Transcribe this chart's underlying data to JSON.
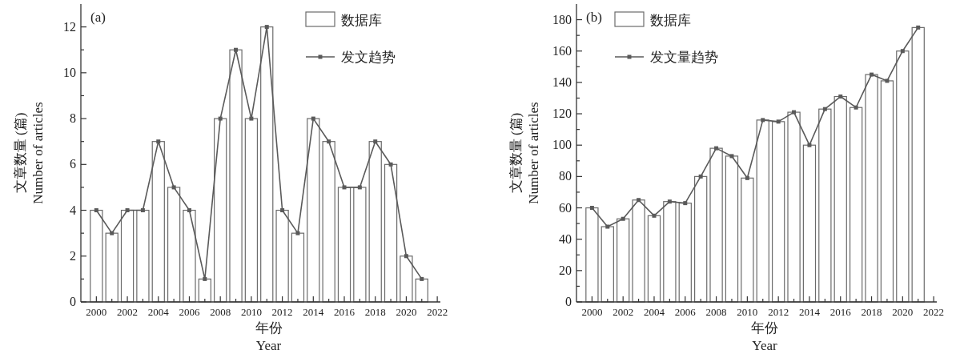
{
  "chart_data": [
    {
      "type": "bar",
      "annotations": [
        "(a)"
      ],
      "xlabel": "年份\nYear",
      "ylabel": "文章数量 (篇)\nNumber of articles",
      "x": [
        2000,
        2001,
        2002,
        2003,
        2004,
        2005,
        2006,
        2007,
        2008,
        2009,
        2010,
        2011,
        2012,
        2013,
        2014,
        2015,
        2016,
        2017,
        2018,
        2019,
        2020,
        2021
      ],
      "series": [
        {
          "name": "数据库",
          "color": "#ffffff",
          "values": [
            4,
            3,
            4,
            4,
            7,
            5,
            4,
            1,
            8,
            11,
            8,
            12,
            4,
            3,
            8,
            7,
            5,
            5,
            7,
            6,
            2,
            1
          ]
        },
        {
          "name": "发文趋势",
          "type": "line",
          "color": "#5a5a5a",
          "values": [
            4,
            3,
            4,
            4,
            7,
            5,
            4,
            1,
            8,
            11,
            8,
            12,
            4,
            3,
            8,
            7,
            5,
            5,
            7,
            6,
            2,
            1
          ]
        }
      ],
      "marker": "square",
      "legend": "top right",
      "xlim": [
        1999,
        2022.2
      ],
      "ylim": [
        0,
        13
      ],
      "xticks": [
        2000,
        {
          "value": 2001,
          "label": null
        },
        2002,
        {
          "value": 2003,
          "label": null
        },
        2004,
        {
          "value": 2005,
          "label": null
        },
        2006,
        {
          "value": 2007,
          "label": null
        },
        2008,
        {
          "value": 2009,
          "label": null
        },
        2010,
        {
          "value": 2011,
          "label": null
        },
        2012,
        {
          "value": 2013,
          "label": null
        },
        2014,
        {
          "value": 2015,
          "label": null
        },
        2016,
        {
          "value": 2017,
          "label": null
        },
        2018,
        {
          "value": 2019,
          "label": null
        },
        2020,
        {
          "value": 2021,
          "label": null
        },
        2022
      ],
      "yticks": [
        0,
        {
          "value": 1,
          "label": null
        },
        2,
        {
          "value": 3,
          "label": null
        },
        4,
        {
          "value": 5,
          "label": null
        },
        6,
        {
          "value": 7,
          "label": null
        },
        8,
        {
          "value": 9,
          "label": null
        },
        10,
        {
          "value": 11,
          "label": null
        },
        12
      ]
    },
    {
      "type": "bar",
      "annotations": [
        "(b)"
      ],
      "xlabel": "年份\nYear",
      "ylabel": "文章数量 (篇)\nNumber of articles",
      "x": [
        2000,
        2001,
        2002,
        2003,
        2004,
        2005,
        2006,
        2007,
        2008,
        2009,
        2010,
        2011,
        2012,
        2013,
        2014,
        2015,
        2016,
        2017,
        2018,
        2019,
        2020,
        2021
      ],
      "series": [
        {
          "name": "数据库",
          "color": "#ffffff",
          "values": [
            60,
            48,
            53,
            65,
            55,
            64,
            63,
            80,
            98,
            93,
            79,
            116,
            115,
            121,
            100,
            123,
            131,
            124,
            145,
            141,
            160,
            175
          ]
        },
        {
          "name": "发文量趋势",
          "type": "line",
          "color": "#5a5a5a",
          "values": [
            60,
            48,
            53,
            65,
            55,
            64,
            63,
            80,
            98,
            93,
            79,
            116,
            115,
            121,
            100,
            123,
            131,
            124,
            145,
            141,
            160,
            175
          ]
        }
      ],
      "marker": "square",
      "legend": "top left",
      "xlim": [
        1999,
        2022.2
      ],
      "ylim": [
        0,
        190
      ],
      "xticks": [
        2000,
        {
          "value": 2001,
          "label": null
        },
        2002,
        {
          "value": 2003,
          "label": null
        },
        2004,
        {
          "value": 2005,
          "label": null
        },
        2006,
        {
          "value": 2007,
          "label": null
        },
        2008,
        {
          "value": 2009,
          "label": null
        },
        2010,
        {
          "value": 2011,
          "label": null
        },
        2012,
        {
          "value": 2013,
          "label": null
        },
        2014,
        {
          "value": 2015,
          "label": null
        },
        2016,
        {
          "value": 2017,
          "label": null
        },
        2018,
        {
          "value": 2019,
          "label": null
        },
        2020,
        {
          "value": 2021,
          "label": null
        },
        2022
      ],
      "yticks": [
        0,
        {
          "value": 10,
          "label": null
        },
        20,
        {
          "value": 30,
          "label": null
        },
        40,
        {
          "value": 50,
          "label": null
        },
        60,
        {
          "value": 70,
          "label": null
        },
        80,
        {
          "value": 90,
          "label": null
        },
        100,
        {
          "value": 110,
          "label": null
        },
        120,
        {
          "value": 130,
          "label": null
        },
        140,
        {
          "value": 150,
          "label": null
        },
        160,
        {
          "value": 170,
          "label": null
        },
        180
      ]
    }
  ]
}
